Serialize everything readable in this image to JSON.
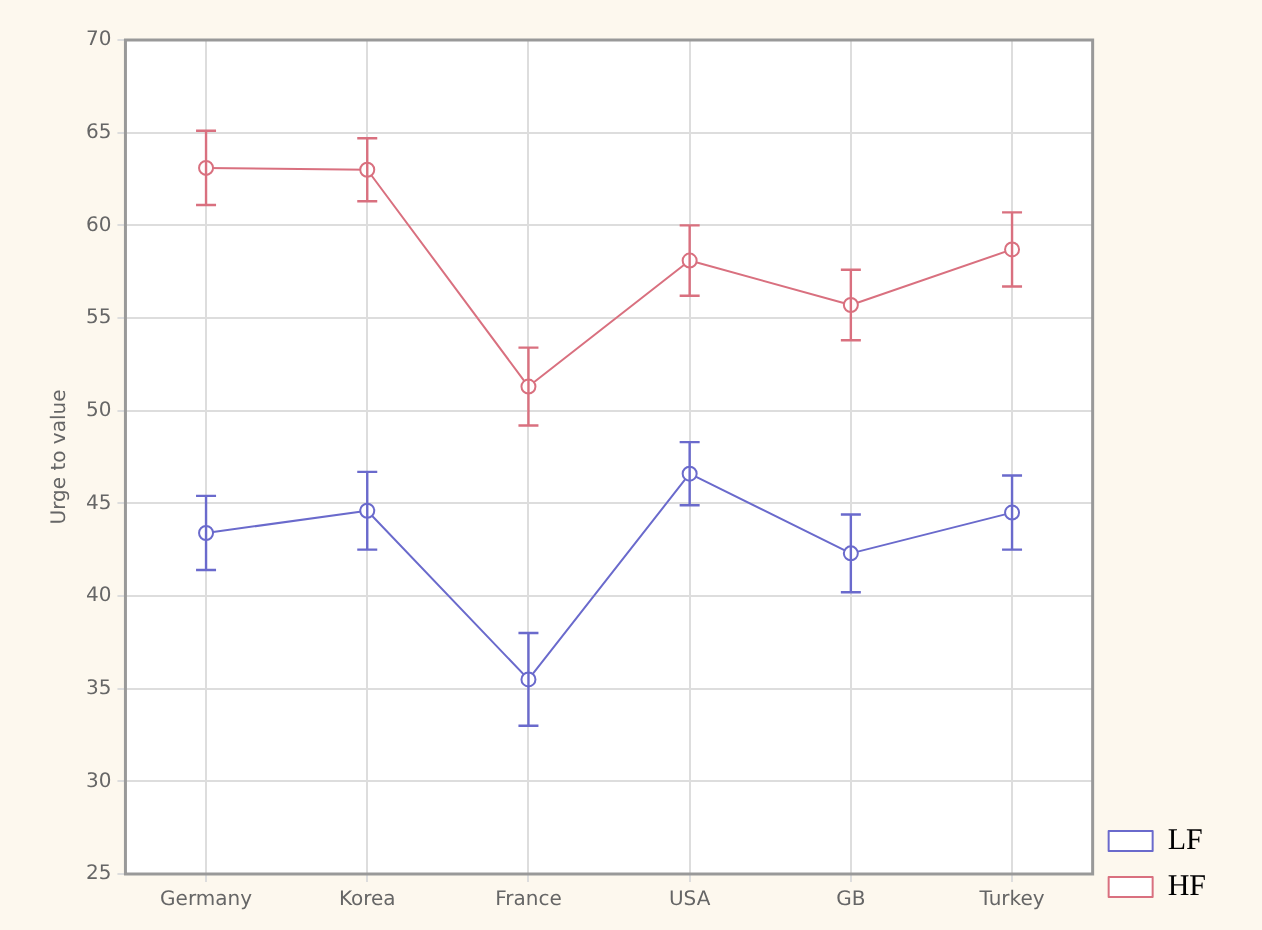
{
  "chart_data": {
    "type": "line",
    "ylabel": "Urge to value",
    "categories": [
      "Germany",
      "Korea",
      "France",
      "USA",
      "GB",
      "Turkey"
    ],
    "series": [
      {
        "name": "LF",
        "color": "#6a6acc",
        "values": [
          43.4,
          44.6,
          35.5,
          46.6,
          42.3,
          44.5
        ],
        "errors": [
          2,
          2.1,
          2.5,
          1.7,
          2.1,
          2
        ]
      },
      {
        "name": "HF",
        "color": "#d9707f",
        "values": [
          63.1,
          63.0,
          51.3,
          58.1,
          55.7,
          58.7
        ],
        "errors": [
          2,
          1.7,
          2.1,
          1.9,
          1.9,
          2
        ]
      }
    ],
    "ylim": [
      25,
      70
    ],
    "yticks": [
      25,
      30,
      35,
      40,
      45,
      50,
      55,
      60,
      65,
      70
    ],
    "grid": true,
    "legend": "bottom right",
    "marker": "circle",
    "line_style": "solid"
  }
}
